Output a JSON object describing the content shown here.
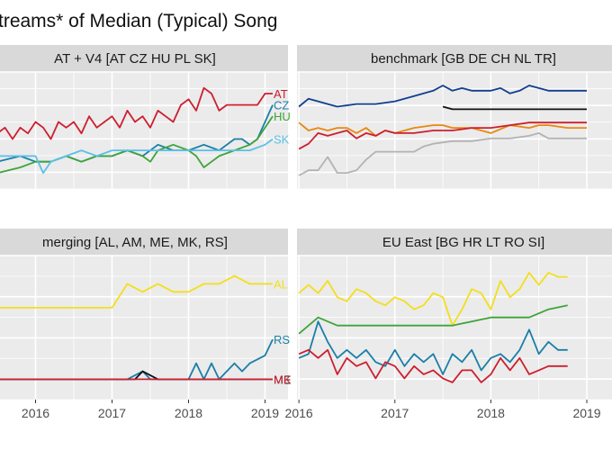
{
  "chart_data": {
    "type": "line",
    "title": "treams* of Median (Typical) Song",
    "x_tick_labels": [
      "2016",
      "2017",
      "2018",
      "2019"
    ],
    "grid": true,
    "colors": {
      "panel_bg": "#ebebeb",
      "strip_bg": "#d9d9d9",
      "grid": "#ffffff",
      "red": "#cc1f2f",
      "teal": "#1a7fa8",
      "green": "#41a33a",
      "lightblue": "#5bc0e8",
      "navy": "#123f8f",
      "black": "#111111",
      "orange": "#e8880f",
      "gray": "#b3b3b3",
      "yellow": "#f2df1c"
    },
    "facets": [
      {
        "strip": "AT + V4 [AT CZ HU PL SK]",
        "series": [
          {
            "color": "red",
            "end_label": "AT",
            "x": [
              2015.5,
              2015.6,
              2015.7,
              2015.8,
              2015.9,
              2016.0,
              2016.1,
              2016.2,
              2016.3,
              2016.4,
              2016.5,
              2016.6,
              2016.7,
              2016.8,
              2016.9,
              2017.0,
              2017.1,
              2017.2,
              2017.3,
              2017.4,
              2017.5,
              2017.6,
              2017.7,
              2017.8,
              2017.9,
              2018.0,
              2018.1,
              2018.2,
              2018.3,
              2018.4,
              2018.5,
              2018.6,
              2018.7,
              2018.8,
              2018.9,
              2019.0,
              2019.1
            ],
            "y": [
              0.45,
              0.46,
              0.44,
              0.46,
              0.45,
              0.47,
              0.46,
              0.44,
              0.47,
              0.46,
              0.47,
              0.45,
              0.48,
              0.46,
              0.47,
              0.48,
              0.46,
              0.49,
              0.47,
              0.48,
              0.46,
              0.49,
              0.48,
              0.47,
              0.5,
              0.51,
              0.49,
              0.53,
              0.52,
              0.49,
              0.5,
              0.5,
              0.5,
              0.5,
              0.5,
              0.52,
              0.52
            ]
          },
          {
            "color": "teal",
            "end_label": "CZ",
            "x": [
              2015.5,
              2015.8,
              2016.0,
              2016.2,
              2016.4,
              2016.6,
              2016.8,
              2017.0,
              2017.2,
              2017.4,
              2017.6,
              2017.8,
              2018.0,
              2018.2,
              2018.4,
              2018.6,
              2018.7,
              2018.8,
              2018.9,
              2019.0,
              2019.1
            ],
            "y": [
              0.4,
              0.41,
              0.4,
              0.4,
              0.41,
              0.4,
              0.41,
              0.41,
              0.42,
              0.41,
              0.43,
              0.42,
              0.42,
              0.43,
              0.42,
              0.44,
              0.44,
              0.43,
              0.44,
              0.47,
              0.5
            ]
          },
          {
            "color": "green",
            "end_label": "HU",
            "x": [
              2015.5,
              2015.8,
              2016.0,
              2016.2,
              2016.4,
              2016.6,
              2016.8,
              2017.0,
              2017.2,
              2017.4,
              2017.5,
              2017.6,
              2017.8,
              2018.0,
              2018.1,
              2018.2,
              2018.3,
              2018.4,
              2018.6,
              2018.8,
              2018.9,
              2019.0,
              2019.1
            ],
            "y": [
              0.38,
              0.39,
              0.4,
              0.4,
              0.41,
              0.4,
              0.41,
              0.41,
              0.42,
              0.41,
              0.4,
              0.42,
              0.43,
              0.42,
              0.41,
              0.39,
              0.4,
              0.41,
              0.42,
              0.43,
              0.44,
              0.46,
              0.48
            ]
          },
          {
            "color": "lightblue",
            "end_label": "SK",
            "x": [
              2015.5,
              2015.8,
              2016.0,
              2016.1,
              2016.2,
              2016.4,
              2016.6,
              2016.8,
              2017.0,
              2017.2,
              2017.4,
              2017.6,
              2017.8,
              2018.0,
              2018.2,
              2018.4,
              2018.6,
              2018.8,
              2019.0,
              2019.1
            ],
            "y": [
              0.41,
              0.41,
              0.41,
              0.38,
              0.4,
              0.41,
              0.42,
              0.41,
              0.42,
              0.42,
              0.42,
              0.42,
              0.42,
              0.42,
              0.42,
              0.42,
              0.42,
              0.42,
              0.43,
              0.44
            ]
          }
        ]
      },
      {
        "strip": "benchmark [GB DE CH NL TR]",
        "series": [
          {
            "color": "navy",
            "x": [
              2016.0,
              2016.1,
              2016.2,
              2016.3,
              2016.4,
              2016.6,
              2016.8,
              2017.0,
              2017.2,
              2017.4,
              2017.5,
              2017.6,
              2017.7,
              2017.8,
              2018.0,
              2018.1,
              2018.2,
              2018.3,
              2018.4,
              2018.5,
              2018.6,
              2018.7,
              2018.8,
              2019.0
            ],
            "y": [
              0.68,
              0.71,
              0.7,
              0.69,
              0.68,
              0.69,
              0.69,
              0.7,
              0.72,
              0.74,
              0.76,
              0.74,
              0.75,
              0.74,
              0.74,
              0.75,
              0.73,
              0.74,
              0.76,
              0.75,
              0.74,
              0.74,
              0.74,
              0.74
            ]
          },
          {
            "color": "black",
            "x": [
              2017.5,
              2017.6,
              2017.8,
              2018.0,
              2018.2,
              2018.4,
              2018.6,
              2018.8,
              2019.0
            ],
            "y": [
              0.68,
              0.67,
              0.67,
              0.67,
              0.67,
              0.67,
              0.67,
              0.67,
              0.67
            ]
          },
          {
            "color": "orange",
            "x": [
              2016.0,
              2016.1,
              2016.2,
              2016.3,
              2016.4,
              2016.5,
              2016.6,
              2016.7,
              2016.8,
              2016.9,
              2017.0,
              2017.2,
              2017.4,
              2017.5,
              2017.6,
              2017.8,
              2018.0,
              2018.2,
              2018.4,
              2018.5,
              2018.6,
              2018.8,
              2019.0
            ],
            "y": [
              0.62,
              0.59,
              0.6,
              0.59,
              0.6,
              0.6,
              0.58,
              0.6,
              0.57,
              0.59,
              0.58,
              0.6,
              0.61,
              0.61,
              0.6,
              0.6,
              0.58,
              0.61,
              0.6,
              0.61,
              0.61,
              0.6,
              0.6
            ]
          },
          {
            "color": "red",
            "x": [
              2016.0,
              2016.1,
              2016.2,
              2016.3,
              2016.4,
              2016.5,
              2016.6,
              2016.7,
              2016.8,
              2016.9,
              2017.0,
              2017.2,
              2017.4,
              2017.6,
              2017.8,
              2018.0,
              2018.2,
              2018.4,
              2018.6,
              2018.8,
              2019.0
            ],
            "y": [
              0.52,
              0.54,
              0.58,
              0.57,
              0.58,
              0.59,
              0.56,
              0.58,
              0.57,
              0.59,
              0.58,
              0.58,
              0.59,
              0.59,
              0.6,
              0.6,
              0.61,
              0.62,
              0.62,
              0.62,
              0.62
            ]
          },
          {
            "color": "gray",
            "x": [
              2016.0,
              2016.1,
              2016.2,
              2016.3,
              2016.4,
              2016.5,
              2016.6,
              2016.7,
              2016.8,
              2017.0,
              2017.2,
              2017.3,
              2017.4,
              2017.6,
              2017.8,
              2018.0,
              2018.2,
              2018.4,
              2018.5,
              2018.6,
              2018.8,
              2019.0
            ],
            "y": [
              0.42,
              0.44,
              0.44,
              0.49,
              0.43,
              0.43,
              0.44,
              0.48,
              0.51,
              0.51,
              0.51,
              0.53,
              0.54,
              0.55,
              0.55,
              0.56,
              0.56,
              0.57,
              0.58,
              0.56,
              0.56,
              0.56
            ]
          }
        ]
      },
      {
        "strip": "merging [AL, AM, ME, MK, RS]",
        "series": [
          {
            "color": "yellow",
            "end_label": "AL",
            "x": [
              2015.5,
              2016.0,
              2016.4,
              2016.6,
              2016.8,
              2017.0,
              2017.2,
              2017.4,
              2017.6,
              2017.8,
              2018.0,
              2018.2,
              2018.4,
              2018.6,
              2018.8,
              2019.0,
              2019.1
            ],
            "y": [
              0.1,
              0.1,
              0.1,
              0.1,
              0.1,
              0.1,
              0.13,
              0.12,
              0.13,
              0.12,
              0.12,
              0.13,
              0.13,
              0.14,
              0.13,
              0.13,
              0.13
            ]
          },
          {
            "color": "teal",
            "end_label": "RS",
            "x": [
              2015.5,
              2016.0,
              2016.4,
              2016.6,
              2016.8,
              2017.0,
              2017.2,
              2017.4,
              2017.5,
              2017.6,
              2017.8,
              2018.0,
              2018.1,
              2018.2,
              2018.3,
              2018.4,
              2018.6,
              2018.7,
              2018.8,
              2019.0,
              2019.1
            ],
            "y": [
              0.01,
              0.01,
              0.01,
              0.01,
              0.01,
              0.01,
              0.01,
              0.02,
              0.01,
              0.01,
              0.01,
              0.01,
              0.03,
              0.01,
              0.03,
              0.01,
              0.03,
              0.02,
              0.03,
              0.04,
              0.06
            ]
          },
          {
            "color": "black",
            "end_label": "ME",
            "x": [
              2015.5,
              2016.0,
              2017.0,
              2017.3,
              2017.4,
              2017.6,
              2018.0,
              2019.1
            ],
            "y": [
              0.01,
              0.01,
              0.01,
              0.01,
              0.02,
              0.01,
              0.01,
              0.01
            ]
          },
          {
            "color": "red",
            "end_label": "MK",
            "x": [
              2015.5,
              2016.0,
              2017.0,
              2017.4,
              2017.5,
              2017.6,
              2018.0,
              2019.1
            ],
            "y": [
              0.01,
              0.01,
              0.01,
              0.01,
              0.01,
              0.01,
              0.01,
              0.01
            ]
          }
        ]
      },
      {
        "strip": "EU East [BG HR LT RO SI]",
        "series": [
          {
            "color": "yellow",
            "x": [
              2016.0,
              2016.1,
              2016.2,
              2016.3,
              2016.4,
              2016.5,
              2016.6,
              2016.7,
              2016.8,
              2016.9,
              2017.0,
              2017.1,
              2017.2,
              2017.3,
              2017.4,
              2017.5,
              2017.6,
              2017.7,
              2017.8,
              2017.9,
              2018.0,
              2018.1,
              2018.2,
              2018.3,
              2018.4,
              2018.5,
              2018.6,
              2018.7,
              2018.8
            ],
            "y": [
              0.26,
              0.28,
              0.26,
              0.29,
              0.25,
              0.24,
              0.27,
              0.26,
              0.24,
              0.23,
              0.25,
              0.24,
              0.22,
              0.23,
              0.26,
              0.25,
              0.18,
              0.22,
              0.27,
              0.26,
              0.22,
              0.29,
              0.25,
              0.27,
              0.31,
              0.28,
              0.31,
              0.3,
              0.3
            ]
          },
          {
            "color": "green",
            "x": [
              2016.0,
              2016.2,
              2016.4,
              2016.6,
              2016.8,
              2017.0,
              2017.2,
              2017.4,
              2017.6,
              2017.8,
              2018.0,
              2018.2,
              2018.4,
              2018.6,
              2018.8
            ],
            "y": [
              0.16,
              0.2,
              0.18,
              0.18,
              0.18,
              0.18,
              0.18,
              0.18,
              0.18,
              0.19,
              0.2,
              0.2,
              0.2,
              0.22,
              0.23
            ]
          },
          {
            "color": "teal",
            "x": [
              2016.0,
              2016.1,
              2016.2,
              2016.3,
              2016.4,
              2016.5,
              2016.6,
              2016.7,
              2016.8,
              2016.9,
              2017.0,
              2017.1,
              2017.2,
              2017.3,
              2017.4,
              2017.5,
              2017.6,
              2017.7,
              2017.8,
              2017.9,
              2018.0,
              2018.1,
              2018.2,
              2018.3,
              2018.4,
              2018.5,
              2018.6,
              2018.7,
              2018.8
            ],
            "y": [
              0.1,
              0.11,
              0.19,
              0.14,
              0.1,
              0.12,
              0.1,
              0.12,
              0.09,
              0.08,
              0.12,
              0.08,
              0.11,
              0.09,
              0.11,
              0.06,
              0.11,
              0.09,
              0.12,
              0.07,
              0.1,
              0.11,
              0.09,
              0.12,
              0.17,
              0.11,
              0.14,
              0.12,
              0.12
            ]
          },
          {
            "color": "red",
            "x": [
              2016.0,
              2016.1,
              2016.2,
              2016.3,
              2016.4,
              2016.5,
              2016.6,
              2016.7,
              2016.8,
              2016.9,
              2017.0,
              2017.1,
              2017.2,
              2017.3,
              2017.4,
              2017.5,
              2017.6,
              2017.7,
              2017.8,
              2017.9,
              2018.0,
              2018.1,
              2018.2,
              2018.3,
              2018.4,
              2018.5,
              2018.6,
              2018.7,
              2018.8
            ],
            "y": [
              0.11,
              0.12,
              0.1,
              0.12,
              0.06,
              0.1,
              0.08,
              0.09,
              0.05,
              0.09,
              0.08,
              0.05,
              0.08,
              0.06,
              0.07,
              0.05,
              0.04,
              0.07,
              0.07,
              0.04,
              0.06,
              0.1,
              0.07,
              0.1,
              0.06,
              0.07,
              0.08,
              0.08,
              0.08
            ]
          }
        ]
      }
    ]
  }
}
